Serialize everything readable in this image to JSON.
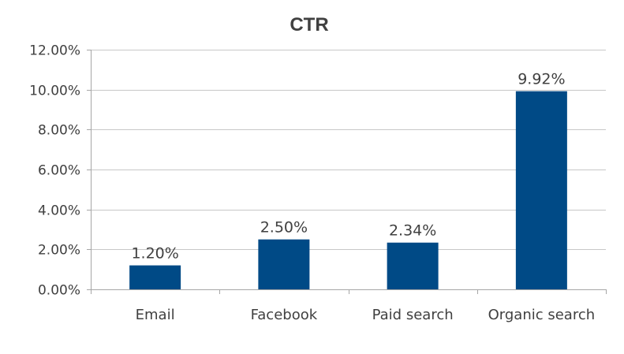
{
  "chart_data": {
    "type": "bar",
    "title": "CTR",
    "xlabel": "",
    "ylabel": "",
    "categories": [
      "Email",
      "Facebook",
      "Paid search",
      "Organic search"
    ],
    "values": [
      1.2,
      2.5,
      2.34,
      9.92
    ],
    "data_labels": [
      "1.20%",
      "2.50%",
      "2.34%",
      "9.92%"
    ],
    "ylim": [
      0,
      12
    ],
    "y_ticks": [
      0,
      2,
      4,
      6,
      8,
      10,
      12
    ],
    "y_tick_labels": [
      "0.00%",
      "2.00%",
      "4.00%",
      "6.00%",
      "8.00%",
      "10.00%",
      "12.00%"
    ],
    "grid": true,
    "legend": "none",
    "colors": {
      "bar": "#004a86",
      "text": "#404040",
      "grid": "#c8c8c8",
      "axis": "#a6a6a6"
    }
  }
}
